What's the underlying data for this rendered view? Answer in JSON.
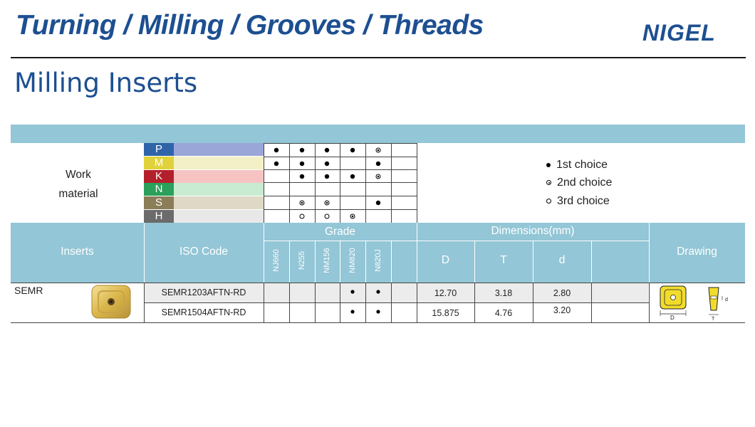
{
  "header": {
    "title": "Turning / Milling / Grooves / Threads",
    "logo": "NIGEL"
  },
  "section_title": "Milling Inserts",
  "work_material": {
    "label_line1": "Work",
    "label_line2": "material",
    "rows": [
      {
        "letter": "P",
        "color": "#2f64a8",
        "bar": "#9aa6d8"
      },
      {
        "letter": "M",
        "color": "#e0d23a",
        "bar": "#f3f0c8"
      },
      {
        "letter": "K",
        "color": "#b3202b",
        "bar": "#f6c3c3"
      },
      {
        "letter": "N",
        "color": "#2aa05a",
        "bar": "#c8ecd2"
      },
      {
        "letter": "S",
        "color": "#8a7d57",
        "bar": "#dfd8c6"
      },
      {
        "letter": "H",
        "color": "#6b6b6b",
        "bar": "#e8e8e8"
      }
    ]
  },
  "legend": {
    "first": "1st choice",
    "second": "2nd choice",
    "third": "3rd choice"
  },
  "table": {
    "inserts_label": "Inserts",
    "iso_label": "ISO Code",
    "grade_label": "Grade",
    "dimensions_label": "Dimensions(mm)",
    "drawing_label": "Drawing",
    "grades": [
      "NJ660",
      "N255",
      "NM156",
      "NM820",
      "N820J"
    ],
    "dims": [
      "D",
      "T",
      "d"
    ],
    "insert_name": "SEMR",
    "rows": [
      {
        "iso": "SEMR1203AFTN-RD",
        "D": "12.70",
        "T": "3.18",
        "d": "2.80"
      },
      {
        "iso": "SEMR1504AFTN-RD",
        "D": "15.875",
        "T": "4.76",
        "d": "3.20"
      }
    ]
  },
  "drawing_labels": {
    "D": "D",
    "T": "T",
    "d": "d"
  }
}
